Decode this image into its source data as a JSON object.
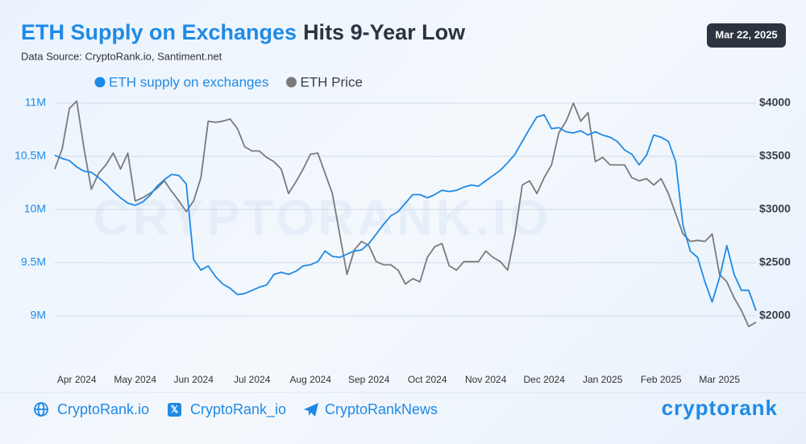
{
  "chart_data": {
    "type": "line",
    "title_highlight": "ETH Supply on Exchanges",
    "title": "Hits 9-Year Low",
    "subtitle": "Data Source: CryptoRank.io, Santiment.net",
    "date": "Mar 22, 2025",
    "watermark": "CRYPTORANK.IO",
    "categories": [
      null,
      null,
      null,
      "Apr 2024",
      null,
      null,
      null,
      null,
      null,
      null,
      null,
      "May 2024",
      null,
      null,
      null,
      null,
      null,
      null,
      null,
      "Jun 2024",
      null,
      null,
      null,
      null,
      null,
      null,
      null,
      "Jul 2024",
      null,
      null,
      null,
      null,
      null,
      null,
      null,
      "Aug 2024",
      null,
      null,
      null,
      null,
      null,
      null,
      null,
      "Sep 2024",
      null,
      null,
      null,
      null,
      null,
      null,
      null,
      "Oct 2024",
      null,
      null,
      null,
      null,
      null,
      null,
      null,
      "Nov 2024",
      null,
      null,
      null,
      null,
      null,
      null,
      null,
      "Dec 2024",
      null,
      null,
      null,
      null,
      null,
      null,
      null,
      "Jan 2025",
      null,
      null,
      null,
      null,
      null,
      null,
      null,
      "Feb 2025",
      null,
      null,
      null,
      null,
      null,
      null,
      null,
      "Mar 2025",
      null,
      null,
      null,
      null,
      null
    ],
    "series": [
      {
        "name": "ETH supply on exchanges",
        "color": "#1f8ae6",
        "values": [
          10.51,
          10.48,
          10.46,
          10.4,
          10.36,
          10.35,
          10.3,
          10.24,
          10.17,
          10.11,
          10.06,
          10.04,
          10.07,
          10.13,
          10.22,
          10.28,
          10.33,
          10.32,
          10.24,
          9.53,
          9.43,
          9.47,
          9.37,
          9.3,
          9.26,
          9.2,
          9.21,
          9.24,
          9.27,
          9.29,
          9.39,
          9.41,
          9.39,
          9.42,
          9.47,
          9.48,
          9.51,
          9.61,
          9.56,
          9.55,
          9.58,
          9.61,
          9.62,
          9.68,
          9.77,
          9.86,
          9.94,
          9.98,
          10.06,
          10.14,
          10.14,
          10.11,
          10.14,
          10.18,
          10.17,
          10.18,
          10.21,
          10.23,
          10.22,
          10.27,
          10.32,
          10.37,
          10.44,
          10.52,
          10.64,
          10.76,
          10.87,
          10.89,
          10.76,
          10.77,
          10.73,
          10.72,
          10.74,
          10.7,
          10.73,
          10.7,
          10.68,
          10.64,
          10.56,
          10.52,
          10.42,
          10.51,
          10.7,
          10.68,
          10.64,
          10.45,
          9.85,
          9.61,
          9.55,
          9.32,
          9.13,
          9.36,
          9.66,
          9.39,
          9.24,
          9.24,
          9.05
        ]
      },
      {
        "name": "ETH Price",
        "color": "#7a7a7a",
        "axis": "y2",
        "values": [
          3380,
          3570,
          3950,
          4020,
          3570,
          3190,
          3340,
          3420,
          3530,
          3380,
          3530,
          3080,
          3110,
          3150,
          3200,
          3270,
          3170,
          3080,
          2980,
          3080,
          3300,
          3830,
          3820,
          3830,
          3850,
          3760,
          3590,
          3550,
          3550,
          3490,
          3450,
          3380,
          3150,
          3260,
          3380,
          3520,
          3530,
          3340,
          3150,
          2770,
          2390,
          2620,
          2700,
          2660,
          2510,
          2480,
          2480,
          2430,
          2300,
          2350,
          2320,
          2550,
          2650,
          2680,
          2470,
          2430,
          2510,
          2510,
          2510,
          2610,
          2550,
          2510,
          2430,
          2770,
          3230,
          3270,
          3150,
          3300,
          3420,
          3720,
          3830,
          4000,
          3830,
          3910,
          3450,
          3490,
          3420,
          3420,
          3420,
          3300,
          3270,
          3290,
          3230,
          3290,
          3150,
          2960,
          2770,
          2700,
          2710,
          2700,
          2770,
          2390,
          2320,
          2170,
          2050,
          1900,
          1940
        ]
      }
    ],
    "ylim": [
      8.8,
      11.2
    ],
    "yticks": [
      {
        "value": 9,
        "label": "9M"
      },
      {
        "value": 9.5,
        "label": "9.5M"
      },
      {
        "value": 10,
        "label": "10M"
      },
      {
        "value": 10.5,
        "label": "10.5M"
      },
      {
        "value": 11,
        "label": "11M"
      }
    ],
    "y2lim": [
      1800,
      4200
    ],
    "y2ticks": [
      {
        "value": 2000,
        "label": "$2000"
      },
      {
        "value": 2500,
        "label": "$2500"
      },
      {
        "value": 3000,
        "label": "$3000"
      },
      {
        "value": 3500,
        "label": "$3500"
      },
      {
        "value": 4000,
        "label": "$4000"
      }
    ],
    "grid": true
  },
  "footer": {
    "website": "CryptoRank.io",
    "x_handle": "CryptoRank_io",
    "telegram": "CryptoRankNews",
    "logo": "cryptorank"
  }
}
